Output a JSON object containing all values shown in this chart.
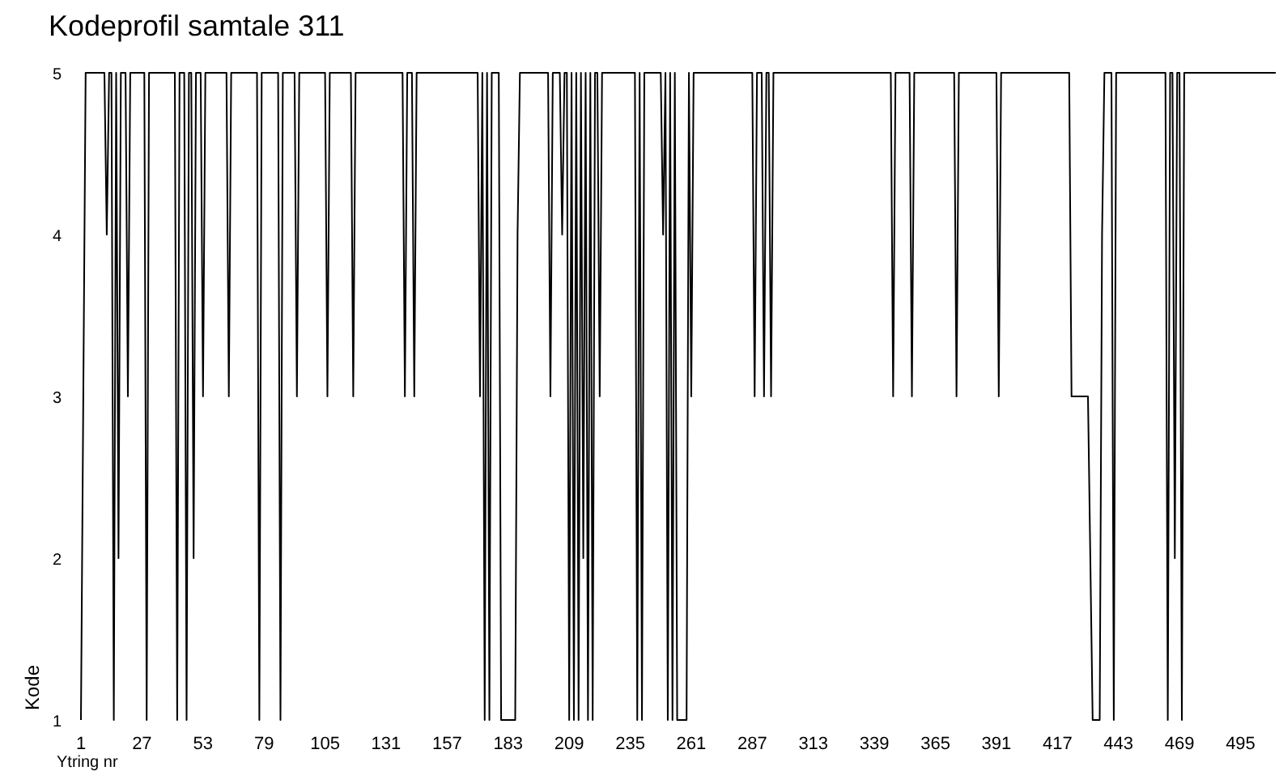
{
  "chart_data": {
    "type": "line",
    "title": "Kodeprofil samtale 311",
    "xlabel": "Ytring nr",
    "ylabel": "Kode",
    "xlim": [
      1,
      510
    ],
    "ylim": [
      1,
      5
    ],
    "xticks": [
      1,
      27,
      53,
      79,
      105,
      131,
      157,
      183,
      209,
      235,
      261,
      287,
      313,
      339,
      365,
      391,
      417,
      443,
      469,
      495
    ],
    "yticks": [
      1,
      2,
      3,
      4,
      5
    ],
    "series": [
      {
        "color": "#000000",
        "x": [
          1,
          2,
          3,
          11,
          12,
          13,
          14,
          15,
          16,
          17,
          18,
          20,
          21,
          22,
          28,
          29,
          30,
          41,
          42,
          43,
          45,
          46,
          47,
          48,
          49,
          50,
          52,
          53,
          54,
          63,
          64,
          65,
          76,
          77,
          78,
          85,
          86,
          87,
          92,
          93,
          94,
          105,
          106,
          107,
          116,
          117,
          118,
          138,
          139,
          140,
          142,
          143,
          144,
          170,
          171,
          172,
          173,
          174,
          175,
          176,
          179,
          180,
          186,
          187,
          188,
          200,
          201,
          202,
          205,
          206,
          207,
          208,
          209,
          210,
          211,
          212,
          213,
          214,
          215,
          216,
          217,
          218,
          219,
          220,
          221,
          222,
          223,
          237,
          238,
          239,
          240,
          241,
          248,
          249,
          250,
          251,
          252,
          253,
          254,
          255,
          259,
          260,
          261,
          262,
          287,
          288,
          289,
          291,
          292,
          293,
          294,
          295,
          296,
          346,
          347,
          348,
          354,
          355,
          356,
          373,
          374,
          375,
          391,
          392,
          393,
          422,
          423,
          430,
          432,
          435,
          436,
          437,
          440,
          441,
          442,
          463,
          464,
          465,
          466,
          467,
          468,
          469,
          470,
          471,
          510
        ],
        "values": [
          1,
          3,
          5,
          5,
          4,
          5,
          5,
          1,
          5,
          2,
          5,
          5,
          3,
          5,
          5,
          1,
          5,
          5,
          1,
          5,
          5,
          1,
          5,
          5,
          2,
          5,
          5,
          3,
          5,
          5,
          3,
          5,
          5,
          1,
          5,
          5,
          1,
          5,
          5,
          3,
          5,
          5,
          3,
          5,
          5,
          3,
          5,
          5,
          3,
          5,
          5,
          3,
          5,
          5,
          3,
          5,
          1,
          5,
          1,
          5,
          5,
          1,
          1,
          4,
          5,
          5,
          3,
          5,
          5,
          4,
          5,
          5,
          1,
          5,
          1,
          5,
          1,
          5,
          2,
          5,
          1,
          5,
          1,
          5,
          5,
          3,
          5,
          5,
          1,
          5,
          1,
          5,
          5,
          4,
          5,
          1,
          5,
          1,
          5,
          1,
          1,
          5,
          3,
          5,
          5,
          3,
          5,
          5,
          3,
          5,
          5,
          3,
          5,
          5,
          3,
          5,
          5,
          3,
          5,
          5,
          3,
          5,
          5,
          3,
          5,
          5,
          3,
          3,
          1,
          1,
          4,
          5,
          5,
          1,
          5,
          5,
          1,
          5,
          5,
          2,
          5,
          5,
          1,
          5,
          5
        ]
      }
    ]
  }
}
